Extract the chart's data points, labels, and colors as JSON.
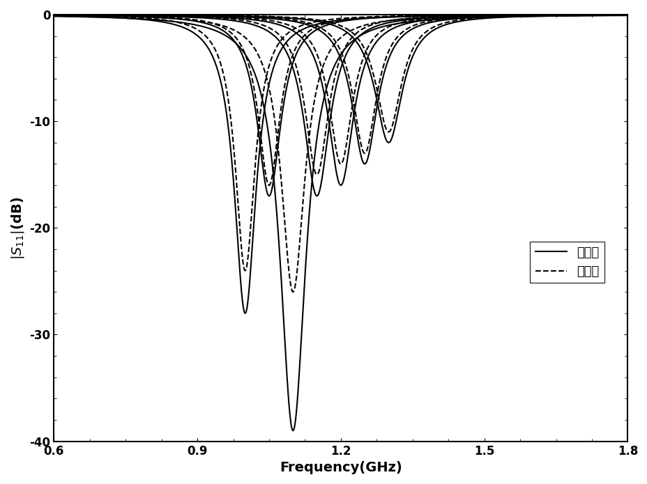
{
  "xlabel": "Frequency(GHz)",
  "ylabel": "|S_{11}|(dB)",
  "xlim": [
    0.6,
    1.8
  ],
  "ylim": [
    -40,
    0
  ],
  "xticks": [
    0.6,
    0.9,
    1.2,
    1.5,
    1.8
  ],
  "yticks": [
    0,
    -10,
    -20,
    -30,
    -40
  ],
  "legend_solid": "测试値",
  "legend_dashed": "理论値",
  "line_color": "#000000",
  "background_color": "#ffffff",
  "freq_start": 0.6,
  "freq_end": 1.8,
  "freq_points": 10000,
  "curves": [
    {
      "fc": 1.0,
      "depth_s": -28,
      "bw_s": 0.055,
      "depth_d": -24,
      "bw_d": 0.05
    },
    {
      "fc": 1.05,
      "depth_s": -17,
      "bw_s": 0.06,
      "depth_d": -16,
      "bw_d": 0.055
    },
    {
      "fc": 1.1,
      "depth_s": -39,
      "bw_s": 0.065,
      "depth_d": -26,
      "bw_d": 0.06
    },
    {
      "fc": 1.15,
      "depth_s": -17,
      "bw_s": 0.065,
      "depth_d": -15,
      "bw_d": 0.06
    },
    {
      "fc": 1.2,
      "depth_s": -16,
      "bw_s": 0.065,
      "depth_d": -14,
      "bw_d": 0.06
    },
    {
      "fc": 1.25,
      "depth_s": -14,
      "bw_s": 0.065,
      "depth_d": -13,
      "bw_d": 0.06
    },
    {
      "fc": 1.3,
      "depth_s": -12,
      "bw_s": 0.07,
      "depth_d": -11,
      "bw_d": 0.065
    }
  ]
}
